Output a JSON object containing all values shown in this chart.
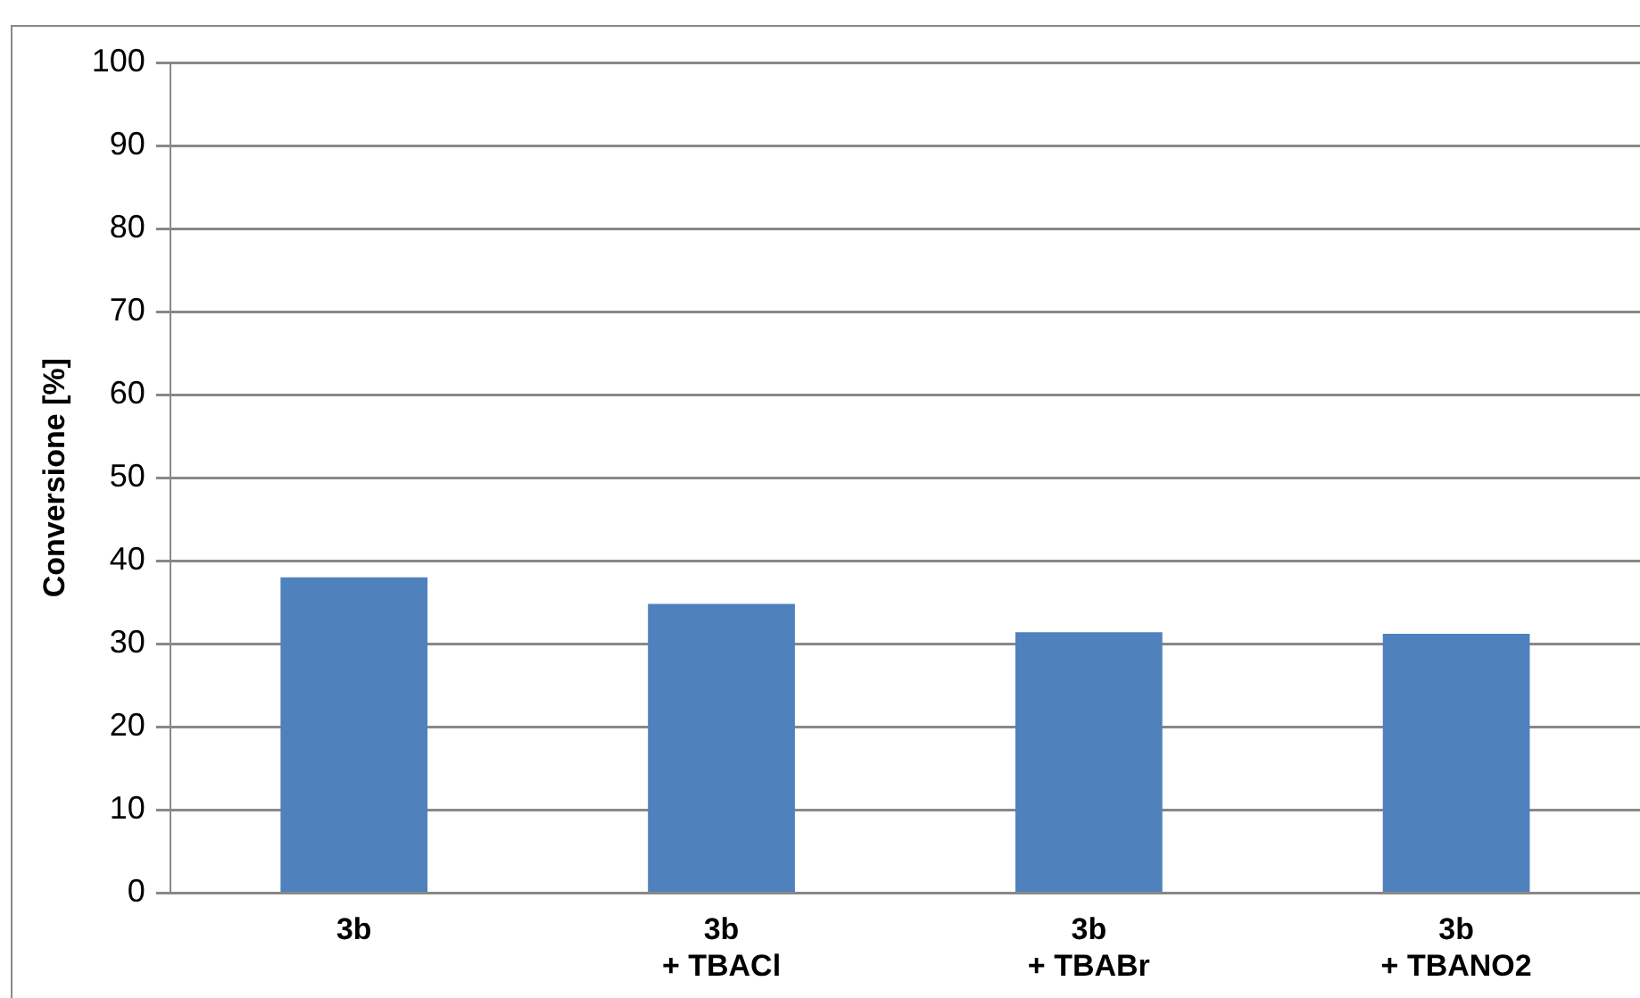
{
  "chart_data": {
    "type": "bar",
    "ylabel": "Conversione [%]",
    "categories": [
      "3b",
      "3b\n+ TBACl",
      "3b\n+ TBABr",
      "3b\n+ TBANO2"
    ],
    "values": [
      38.0,
      34.8,
      31.4,
      31.2
    ],
    "color": "#4f81bd",
    "ylim": [
      0,
      100
    ],
    "yticks": [
      0,
      10,
      20,
      30,
      40,
      50,
      60,
      70,
      80,
      90,
      100
    ],
    "grid": "y",
    "legend": false
  }
}
